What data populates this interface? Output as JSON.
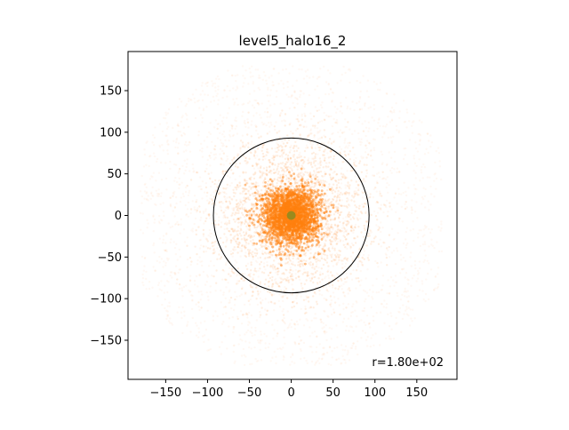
{
  "chart_data": {
    "type": "scatter",
    "title": "level5_halo16_2",
    "xlabel": "",
    "ylabel": "",
    "xlim": [
      -195,
      198
    ],
    "ylim": [
      -197,
      197
    ],
    "xticks": [
      -150,
      -100,
      -50,
      0,
      50,
      100,
      150
    ],
    "yticks": [
      -150,
      -100,
      -50,
      0,
      50,
      100,
      150
    ],
    "xtick_labels": [
      "−150",
      "−100",
      "−50",
      "0",
      "50",
      "100",
      "150"
    ],
    "ytick_labels": [
      "−150",
      "−100",
      "−50",
      "0",
      "50",
      "100",
      "150"
    ],
    "grid": false,
    "series": [
      {
        "points_description_free": true,
        "color": "#ff7f0e",
        "center": [
          0,
          0
        ],
        "extent": 180
      }
    ],
    "center_marker": {
      "x": 0,
      "y": 0,
      "color": "#9a8a1e"
    },
    "circle": {
      "cx": 0,
      "cy": 0,
      "radius": 93,
      "color": "#000000"
    },
    "annotation": "r=1.80e+02",
    "colors": {
      "points": "#ff7f0e",
      "marker": "#9a8a1e",
      "axes": "#000000"
    }
  }
}
